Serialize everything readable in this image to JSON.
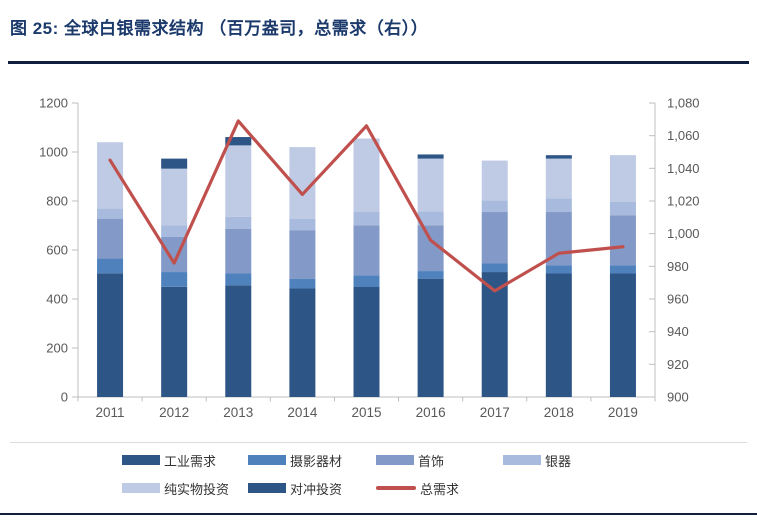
{
  "header": {
    "title": "图 25:  全球白银需求结构 （百万盎司，总需求（右））"
  },
  "chart_data": {
    "type": "bar",
    "subtype": "stacked-bars-with-line-overlay",
    "title": "全球白银需求结构",
    "unit": "百万盎司",
    "categories": [
      "2011",
      "2012",
      "2013",
      "2014",
      "2015",
      "2016",
      "2017",
      "2018",
      "2019"
    ],
    "series": [
      {
        "name": "工业需求",
        "color": "#2d5687",
        "values": [
          505,
          450,
          456,
          443,
          449,
          483,
          510,
          504,
          504
        ]
      },
      {
        "name": "摄影器材",
        "color": "#4f81bd",
        "values": [
          60,
          60,
          48,
          40,
          48,
          31,
          35,
          34,
          34
        ]
      },
      {
        "name": "首饰",
        "color": "#8399c8",
        "values": [
          163,
          143,
          183,
          198,
          204,
          187,
          210,
          217,
          204
        ]
      },
      {
        "name": "银器",
        "color": "#a8badd",
        "values": [
          41,
          48,
          48,
          47,
          54,
          57,
          48,
          55,
          54
        ]
      },
      {
        "name": "纯实物投资",
        "color": "#bfcbe4",
        "values": [
          271,
          231,
          292,
          292,
          300,
          215,
          162,
          163,
          191
        ]
      },
      {
        "name": "对冲投资",
        "color": "#2d5687",
        "values": [
          0,
          41,
          34,
          0,
          0,
          17,
          0,
          14,
          0
        ]
      }
    ],
    "line_series": {
      "name": "总需求",
      "color": "#c0504d",
      "axis": "right",
      "values": [
        1045,
        982,
        1069,
        1024,
        1066,
        996,
        965,
        988,
        992
      ]
    },
    "left_axis": {
      "min": 0,
      "max": 1200,
      "step": 200,
      "ticks": [
        "0",
        "200",
        "400",
        "600",
        "800",
        "1000",
        "1200"
      ]
    },
    "right_axis": {
      "min": 900,
      "max": 1080,
      "step": 20,
      "ticks": [
        "900",
        "920",
        "940",
        "960",
        "980",
        "1,000",
        "1,020",
        "1,040",
        "1,060",
        "1,080"
      ]
    },
    "legend_rows": [
      [
        "工业需求",
        "摄影器材",
        "首饰",
        "银器"
      ],
      [
        "纯实物投资",
        "对冲投资",
        "总需求"
      ]
    ],
    "grid": "off",
    "legend_position": "bottom",
    "axis_text_color": "#595959",
    "axis_line_color": "#bfbfbf"
  }
}
